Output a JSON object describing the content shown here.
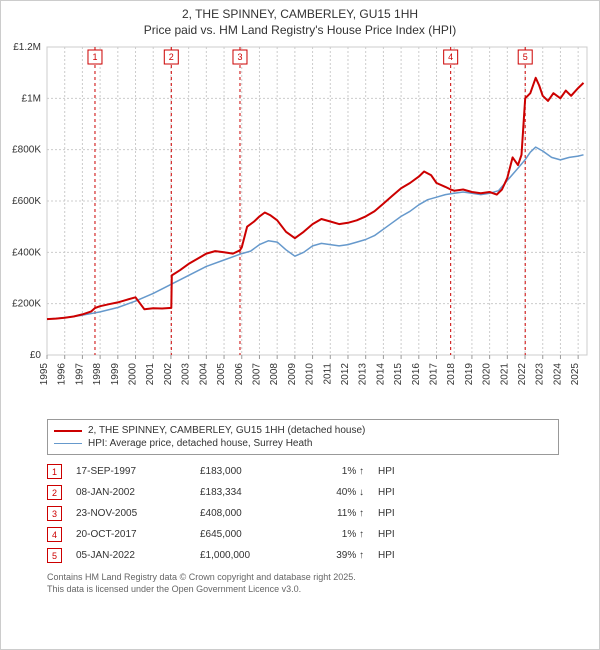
{
  "title_line1": "2, THE SPINNEY, CAMBERLEY, GU15 1HH",
  "title_line2": "Price paid vs. HM Land Registry's House Price Index (HPI)",
  "chart": {
    "type": "line",
    "background_color": "#ffffff",
    "plot_border_color": "#cccccc",
    "grid_color": "#cccccc",
    "grid_dash": "2,2",
    "axis_font_size": 10,
    "y_axis": {
      "ticks": [
        0,
        200000,
        400000,
        600000,
        800000,
        1000000,
        1200000
      ],
      "tick_labels": [
        "£0",
        "£200K",
        "£400K",
        "£600K",
        "£800K",
        "£1M",
        "£1.2M"
      ],
      "min": 0,
      "max": 1200000
    },
    "x_axis": {
      "ticks": [
        1995,
        1996,
        1997,
        1998,
        1999,
        2000,
        2001,
        2002,
        2003,
        2004,
        2005,
        2006,
        2007,
        2008,
        2009,
        2010,
        2011,
        2012,
        2013,
        2014,
        2015,
        2016,
        2017,
        2018,
        2019,
        2020,
        2021,
        2022,
        2023,
        2024,
        2025
      ],
      "min": 1995,
      "max": 2025.5
    },
    "series": [
      {
        "name": "price_paid",
        "label": "2, THE SPINNEY, CAMBERLEY, GU15 1HH (detached house)",
        "color": "#cc0000",
        "line_width": 2,
        "data": [
          [
            1995.0,
            140000
          ],
          [
            1995.5,
            142000
          ],
          [
            1996.0,
            145000
          ],
          [
            1996.5,
            150000
          ],
          [
            1997.0,
            158000
          ],
          [
            1997.5,
            170000
          ],
          [
            1997.71,
            183000
          ],
          [
            1998.0,
            190000
          ],
          [
            1998.5,
            198000
          ],
          [
            1999.0,
            205000
          ],
          [
            1999.5,
            215000
          ],
          [
            2000.0,
            225000
          ],
          [
            2000.5,
            178000
          ],
          [
            2001.0,
            182000
          ],
          [
            2001.5,
            181000
          ],
          [
            2002.02,
            183334
          ],
          [
            2002.05,
            310000
          ],
          [
            2002.5,
            330000
          ],
          [
            2003.0,
            355000
          ],
          [
            2003.5,
            375000
          ],
          [
            2004.0,
            395000
          ],
          [
            2004.5,
            405000
          ],
          [
            2005.0,
            400000
          ],
          [
            2005.5,
            395000
          ],
          [
            2005.9,
            408000
          ],
          [
            2006.0,
            420000
          ],
          [
            2006.3,
            500000
          ],
          [
            2006.7,
            520000
          ],
          [
            2007.0,
            540000
          ],
          [
            2007.3,
            555000
          ],
          [
            2007.6,
            545000
          ],
          [
            2008.0,
            525000
          ],
          [
            2008.5,
            480000
          ],
          [
            2009.0,
            455000
          ],
          [
            2009.5,
            480000
          ],
          [
            2010.0,
            510000
          ],
          [
            2010.5,
            530000
          ],
          [
            2011.0,
            520000
          ],
          [
            2011.5,
            510000
          ],
          [
            2012.0,
            515000
          ],
          [
            2012.5,
            525000
          ],
          [
            2013.0,
            540000
          ],
          [
            2013.5,
            560000
          ],
          [
            2014.0,
            590000
          ],
          [
            2014.5,
            620000
          ],
          [
            2015.0,
            650000
          ],
          [
            2015.5,
            670000
          ],
          [
            2016.0,
            695000
          ],
          [
            2016.3,
            715000
          ],
          [
            2016.7,
            700000
          ],
          [
            2017.0,
            670000
          ],
          [
            2017.5,
            655000
          ],
          [
            2017.8,
            645000
          ],
          [
            2018.0,
            640000
          ],
          [
            2018.5,
            645000
          ],
          [
            2019.0,
            635000
          ],
          [
            2019.5,
            630000
          ],
          [
            2020.0,
            635000
          ],
          [
            2020.4,
            625000
          ],
          [
            2020.7,
            645000
          ],
          [
            2021.0,
            690000
          ],
          [
            2021.3,
            770000
          ],
          [
            2021.6,
            740000
          ],
          [
            2021.8,
            780000
          ],
          [
            2022.01,
            1000000
          ],
          [
            2022.3,
            1020000
          ],
          [
            2022.6,
            1080000
          ],
          [
            2022.8,
            1050000
          ],
          [
            2023.0,
            1010000
          ],
          [
            2023.3,
            990000
          ],
          [
            2023.6,
            1020000
          ],
          [
            2024.0,
            1000000
          ],
          [
            2024.3,
            1030000
          ],
          [
            2024.6,
            1010000
          ],
          [
            2025.0,
            1040000
          ],
          [
            2025.3,
            1060000
          ]
        ]
      },
      {
        "name": "hpi",
        "label": "HPI: Average price, detached house, Surrey Heath",
        "color": "#6699cc",
        "line_width": 1.5,
        "data": [
          [
            1995.0,
            140000
          ],
          [
            1996.0,
            145000
          ],
          [
            1997.0,
            155000
          ],
          [
            1998.0,
            168000
          ],
          [
            1999.0,
            185000
          ],
          [
            2000.0,
            210000
          ],
          [
            2001.0,
            240000
          ],
          [
            2002.0,
            275000
          ],
          [
            2003.0,
            310000
          ],
          [
            2004.0,
            345000
          ],
          [
            2005.0,
            370000
          ],
          [
            2006.0,
            395000
          ],
          [
            2006.5,
            405000
          ],
          [
            2007.0,
            430000
          ],
          [
            2007.5,
            445000
          ],
          [
            2008.0,
            440000
          ],
          [
            2008.5,
            410000
          ],
          [
            2009.0,
            385000
          ],
          [
            2009.5,
            400000
          ],
          [
            2010.0,
            425000
          ],
          [
            2010.5,
            435000
          ],
          [
            2011.0,
            430000
          ],
          [
            2011.5,
            425000
          ],
          [
            2012.0,
            430000
          ],
          [
            2012.5,
            440000
          ],
          [
            2013.0,
            450000
          ],
          [
            2013.5,
            465000
          ],
          [
            2014.0,
            490000
          ],
          [
            2014.5,
            515000
          ],
          [
            2015.0,
            540000
          ],
          [
            2015.5,
            560000
          ],
          [
            2016.0,
            585000
          ],
          [
            2016.5,
            605000
          ],
          [
            2017.0,
            615000
          ],
          [
            2017.5,
            625000
          ],
          [
            2018.0,
            630000
          ],
          [
            2018.5,
            635000
          ],
          [
            2019.0,
            630000
          ],
          [
            2019.5,
            625000
          ],
          [
            2020.0,
            630000
          ],
          [
            2020.5,
            640000
          ],
          [
            2021.0,
            680000
          ],
          [
            2021.5,
            720000
          ],
          [
            2022.0,
            760000
          ],
          [
            2022.3,
            790000
          ],
          [
            2022.6,
            810000
          ],
          [
            2023.0,
            795000
          ],
          [
            2023.5,
            770000
          ],
          [
            2024.0,
            760000
          ],
          [
            2024.5,
            770000
          ],
          [
            2025.0,
            775000
          ],
          [
            2025.3,
            780000
          ]
        ]
      }
    ],
    "sale_markers": [
      {
        "n": 1,
        "x": 1997.71,
        "color": "#cc0000"
      },
      {
        "n": 2,
        "x": 2002.02,
        "color": "#cc0000"
      },
      {
        "n": 3,
        "x": 2005.9,
        "color": "#cc0000"
      },
      {
        "n": 4,
        "x": 2017.8,
        "color": "#cc0000"
      },
      {
        "n": 5,
        "x": 2022.01,
        "color": "#cc0000"
      }
    ]
  },
  "legend": {
    "items": [
      {
        "color": "#cc0000",
        "width": 2,
        "label": "2, THE SPINNEY, CAMBERLEY, GU15 1HH (detached house)"
      },
      {
        "color": "#6699cc",
        "width": 1.5,
        "label": "HPI: Average price, detached house, Surrey Heath"
      }
    ]
  },
  "sales": [
    {
      "n": "1",
      "date": "17-SEP-1997",
      "price": "£183,000",
      "pct": "1% ↑",
      "tag": "HPI",
      "color": "#cc0000"
    },
    {
      "n": "2",
      "date": "08-JAN-2002",
      "price": "£183,334",
      "pct": "40% ↓",
      "tag": "HPI",
      "color": "#cc0000"
    },
    {
      "n": "3",
      "date": "23-NOV-2005",
      "price": "£408,000",
      "pct": "11% ↑",
      "tag": "HPI",
      "color": "#cc0000"
    },
    {
      "n": "4",
      "date": "20-OCT-2017",
      "price": "£645,000",
      "pct": "1% ↑",
      "tag": "HPI",
      "color": "#cc0000"
    },
    {
      "n": "5",
      "date": "05-JAN-2022",
      "price": "£1,000,000",
      "pct": "39% ↑",
      "tag": "HPI",
      "color": "#cc0000"
    }
  ],
  "footer_line1": "Contains HM Land Registry data © Crown copyright and database right 2025.",
  "footer_line2": "This data is licensed under the Open Government Licence v3.0."
}
